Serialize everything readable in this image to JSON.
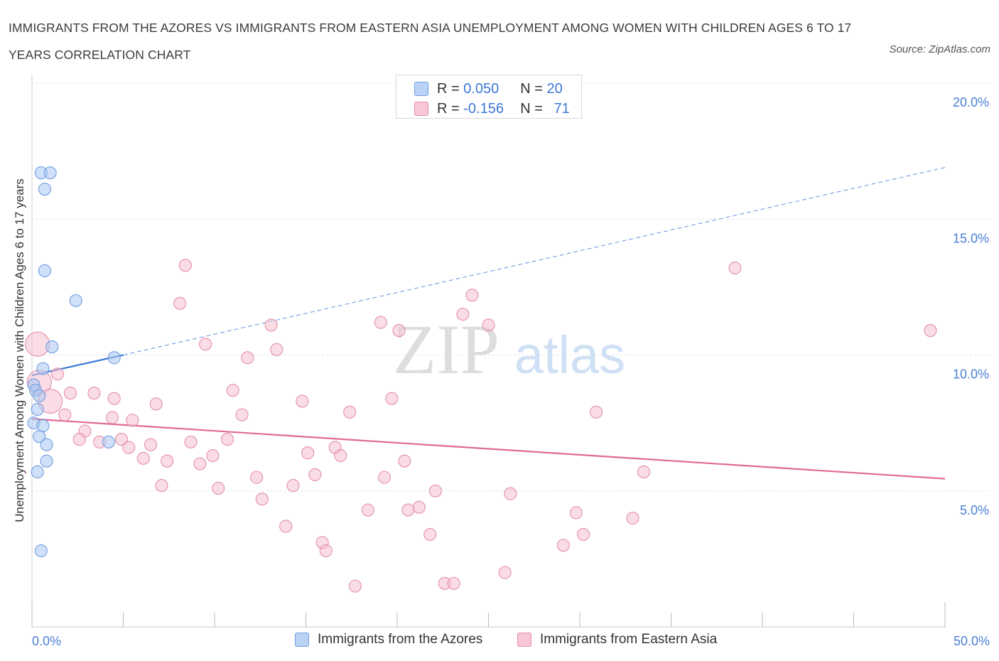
{
  "title": "IMMIGRANTS FROM THE AZORES VS IMMIGRANTS FROM EASTERN ASIA UNEMPLOYMENT AMONG WOMEN WITH CHILDREN AGES 6 TO 17 YEARS CORRELATION CHART",
  "source": "Source: ZipAtlas.com",
  "watermark": {
    "zip": "ZIP",
    "atlas": "atlas"
  },
  "legend_top": {
    "rows": [
      {
        "r_label": "R = ",
        "r_value": "0.050",
        "n_label": "N = ",
        "n_value": "20"
      },
      {
        "r_label": "R = ",
        "r_value": "-0.156",
        "n_label": "N = ",
        "n_value": "71"
      }
    ]
  },
  "chart_data": {
    "type": "scatter",
    "title": "IMMIGRANTS FROM THE AZORES VS IMMIGRANTS FROM EASTERN ASIA UNEMPLOYMENT AMONG WOMEN WITH CHILDREN AGES 6 TO 17 YEARS CORRELATION CHART",
    "xlabel": "",
    "ylabel": "Unemployment Among Women with Children Ages 6 to 17 years",
    "xlim": [
      0,
      50
    ],
    "ylim": [
      0,
      20
    ],
    "x_tick_labels": [
      "0.0%",
      "50.0%"
    ],
    "y_ticks": [
      5,
      10,
      15,
      20
    ],
    "y_tick_labels": [
      "5.0%",
      "10.0%",
      "15.0%",
      "20.0%"
    ],
    "grid": true,
    "legend_position": "bottom",
    "series": [
      {
        "name": "Immigrants from the Azores",
        "color": "#a9c6f2",
        "stroke": "#6f9ee0",
        "R": 0.05,
        "N": 20,
        "trend": {
          "x": [
            0,
            5
          ],
          "y": [
            9.25,
            10.0
          ],
          "extended_to": [
            50,
            16.9
          ],
          "color": "#3d78d8"
        },
        "points": [
          {
            "x": 0.5,
            "y": 16.7
          },
          {
            "x": 1.0,
            "y": 16.7
          },
          {
            "x": 0.7,
            "y": 16.1
          },
          {
            "x": 0.7,
            "y": 13.1
          },
          {
            "x": 2.4,
            "y": 12.0
          },
          {
            "x": 1.1,
            "y": 10.3
          },
          {
            "x": 0.6,
            "y": 9.5
          },
          {
            "x": 4.5,
            "y": 9.9
          },
          {
            "x": 0.1,
            "y": 8.9
          },
          {
            "x": 0.2,
            "y": 8.7
          },
          {
            "x": 0.4,
            "y": 8.5
          },
          {
            "x": 0.3,
            "y": 8.0
          },
          {
            "x": 0.1,
            "y": 7.5
          },
          {
            "x": 0.6,
            "y": 7.4
          },
          {
            "x": 0.4,
            "y": 7.0
          },
          {
            "x": 0.8,
            "y": 6.7
          },
          {
            "x": 4.2,
            "y": 6.8
          },
          {
            "x": 0.8,
            "y": 6.1
          },
          {
            "x": 0.3,
            "y": 5.7
          },
          {
            "x": 0.5,
            "y": 2.8
          }
        ]
      },
      {
        "name": "Immigrants from Eastern Asia",
        "color": "#f6bfd0",
        "stroke": "#e48fab",
        "R": -0.156,
        "N": 71,
        "trend": {
          "x": [
            0,
            50
          ],
          "y": [
            7.65,
            5.45
          ],
          "color": "#e06a93"
        },
        "points": [
          {
            "x": 0.3,
            "y": 10.4,
            "size": "large"
          },
          {
            "x": 0.4,
            "y": 9.0,
            "size": "large"
          },
          {
            "x": 1.0,
            "y": 8.3,
            "size": "large"
          },
          {
            "x": 1.4,
            "y": 9.3
          },
          {
            "x": 2.1,
            "y": 8.6
          },
          {
            "x": 1.8,
            "y": 7.8
          },
          {
            "x": 2.9,
            "y": 7.2
          },
          {
            "x": 2.6,
            "y": 6.9
          },
          {
            "x": 3.4,
            "y": 8.6
          },
          {
            "x": 3.7,
            "y": 6.8
          },
          {
            "x": 4.4,
            "y": 7.7
          },
          {
            "x": 4.5,
            "y": 8.4
          },
          {
            "x": 4.9,
            "y": 6.9
          },
          {
            "x": 5.3,
            "y": 6.6
          },
          {
            "x": 5.5,
            "y": 7.6
          },
          {
            "x": 6.1,
            "y": 6.2
          },
          {
            "x": 6.5,
            "y": 6.7
          },
          {
            "x": 6.8,
            "y": 8.2
          },
          {
            "x": 7.1,
            "y": 5.2
          },
          {
            "x": 7.4,
            "y": 6.1
          },
          {
            "x": 8.1,
            "y": 11.9
          },
          {
            "x": 8.4,
            "y": 13.3
          },
          {
            "x": 8.7,
            "y": 6.8
          },
          {
            "x": 9.2,
            "y": 6.0
          },
          {
            "x": 9.5,
            "y": 10.4
          },
          {
            "x": 9.9,
            "y": 6.3
          },
          {
            "x": 10.2,
            "y": 5.1
          },
          {
            "x": 10.7,
            "y": 6.9
          },
          {
            "x": 11.0,
            "y": 8.7
          },
          {
            "x": 11.5,
            "y": 7.8
          },
          {
            "x": 11.8,
            "y": 9.9
          },
          {
            "x": 12.3,
            "y": 5.5
          },
          {
            "x": 12.6,
            "y": 4.7
          },
          {
            "x": 13.1,
            "y": 11.1
          },
          {
            "x": 13.4,
            "y": 10.2
          },
          {
            "x": 13.9,
            "y": 3.7
          },
          {
            "x": 14.3,
            "y": 5.2
          },
          {
            "x": 14.8,
            "y": 8.3
          },
          {
            "x": 15.1,
            "y": 6.4
          },
          {
            "x": 15.5,
            "y": 5.6
          },
          {
            "x": 15.9,
            "y": 3.1
          },
          {
            "x": 16.1,
            "y": 2.8
          },
          {
            "x": 16.6,
            "y": 6.6
          },
          {
            "x": 16.9,
            "y": 6.3
          },
          {
            "x": 17.4,
            "y": 7.9
          },
          {
            "x": 17.7,
            "y": 1.5
          },
          {
            "x": 18.4,
            "y": 4.3
          },
          {
            "x": 19.1,
            "y": 11.2
          },
          {
            "x": 19.3,
            "y": 5.5
          },
          {
            "x": 19.7,
            "y": 8.4
          },
          {
            "x": 20.1,
            "y": 10.9
          },
          {
            "x": 20.4,
            "y": 6.1
          },
          {
            "x": 20.6,
            "y": 4.3
          },
          {
            "x": 21.2,
            "y": 4.4
          },
          {
            "x": 21.8,
            "y": 3.4
          },
          {
            "x": 22.1,
            "y": 5.0
          },
          {
            "x": 22.6,
            "y": 1.6
          },
          {
            "x": 23.1,
            "y": 1.6
          },
          {
            "x": 23.6,
            "y": 11.5
          },
          {
            "x": 24.1,
            "y": 12.2
          },
          {
            "x": 25.0,
            "y": 11.1
          },
          {
            "x": 25.9,
            "y": 2.0
          },
          {
            "x": 26.2,
            "y": 4.9
          },
          {
            "x": 29.1,
            "y": 3.0
          },
          {
            "x": 29.8,
            "y": 4.2
          },
          {
            "x": 30.2,
            "y": 3.4
          },
          {
            "x": 30.9,
            "y": 7.9
          },
          {
            "x": 32.9,
            "y": 4.0
          },
          {
            "x": 33.5,
            "y": 5.7
          },
          {
            "x": 38.5,
            "y": 13.2
          },
          {
            "x": 49.2,
            "y": 10.9
          }
        ]
      }
    ]
  }
}
